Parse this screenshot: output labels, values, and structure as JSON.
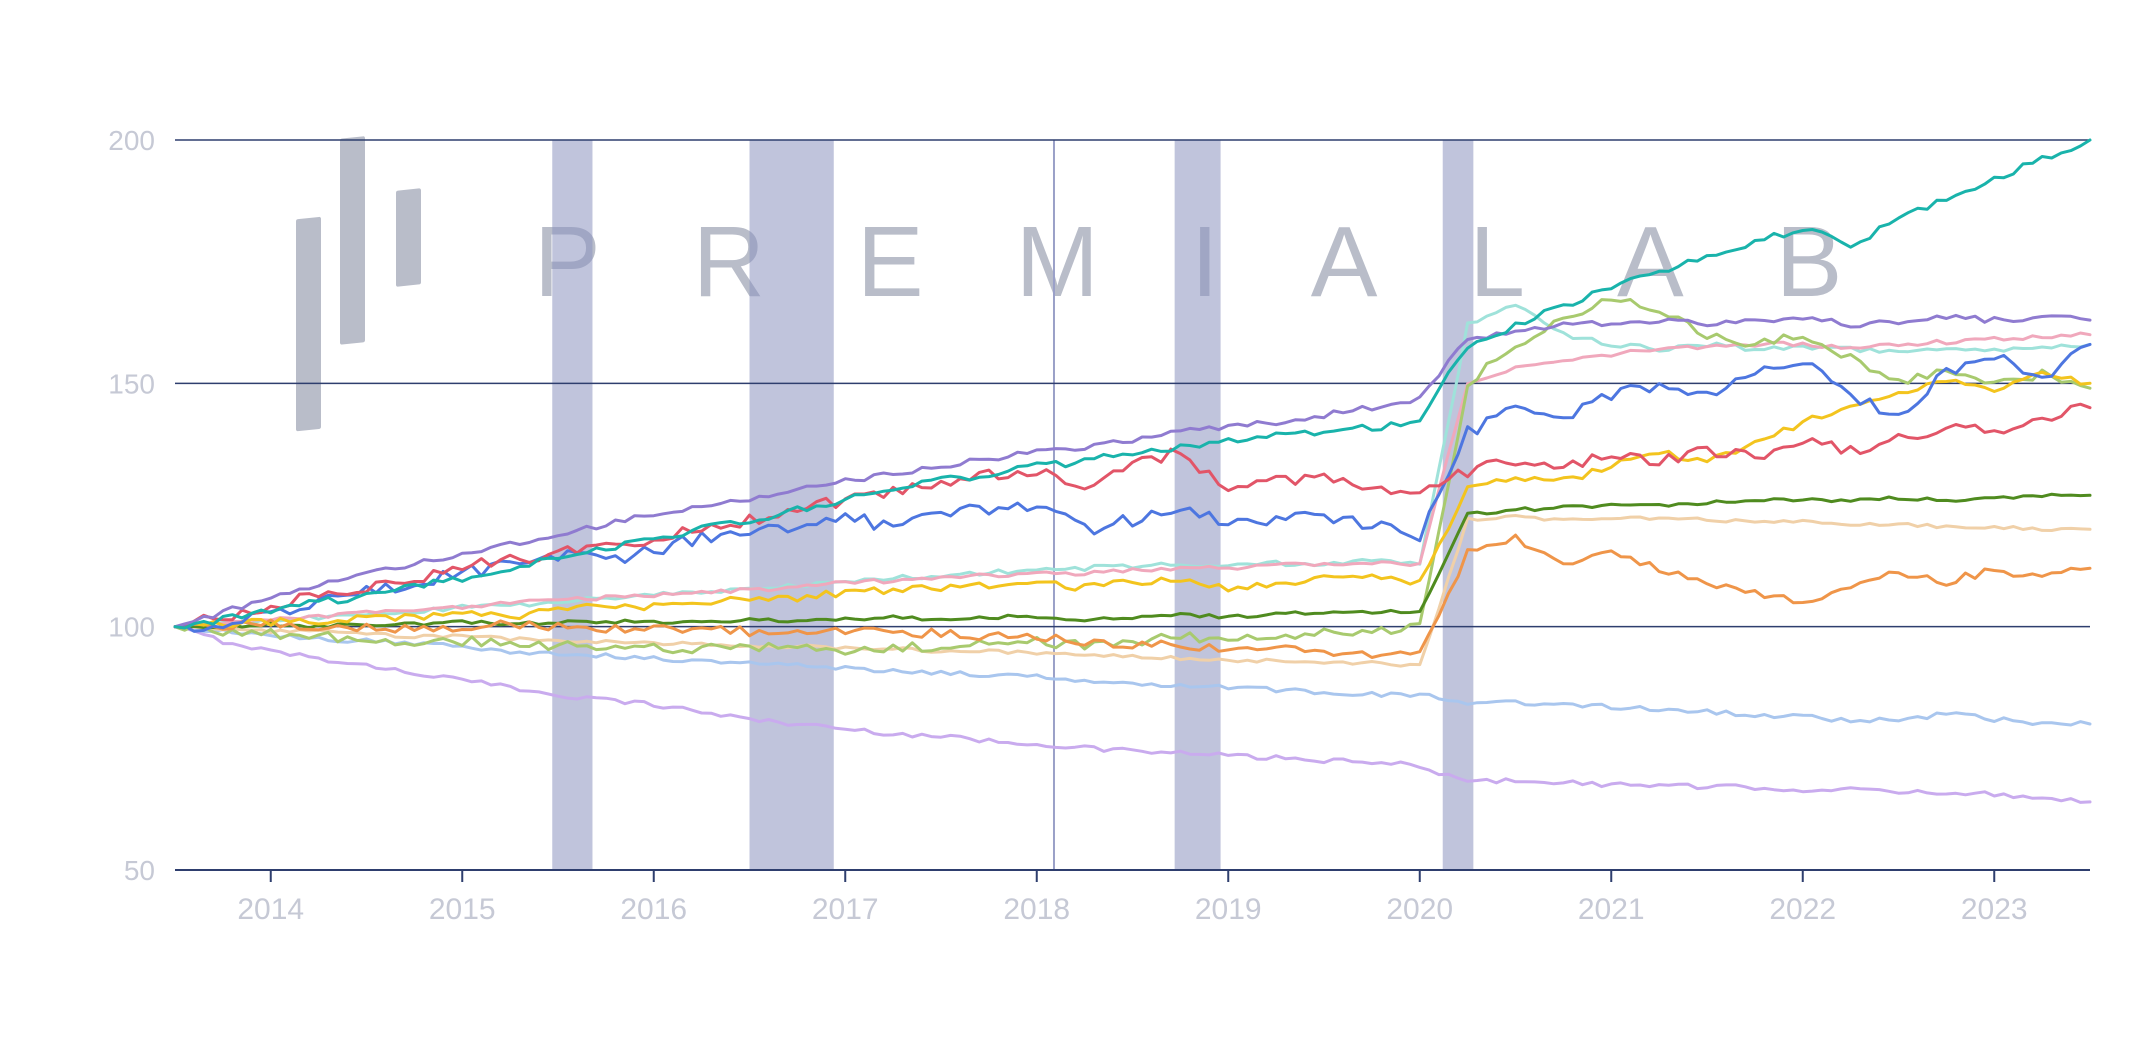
{
  "watermark": {
    "text": "PREMIALAB",
    "icon": "premialab-bars-logo"
  },
  "style": {
    "background": "#ffffff",
    "grid_color": "#2e3e6e",
    "axis_color": "#2e3e6e",
    "tick_label_color": "#c6c9d5",
    "band_color": "#8d93c0",
    "band_opacity": 0.55,
    "event_line_color": "#9aa0c8",
    "watermark_color": "#b9bdc9"
  },
  "chart_data": {
    "type": "line",
    "title": "",
    "xlabel": "",
    "ylabel": "",
    "x_unit": "year",
    "xlim": [
      2013.5,
      2023.5
    ],
    "ylim": [
      50,
      200
    ],
    "yticks": [
      50,
      100,
      150,
      200
    ],
    "xticks": [
      2014,
      2015,
      2016,
      2017,
      2018,
      2019,
      2020,
      2021,
      2022,
      2023
    ],
    "grid": "horizontal",
    "legend": "none",
    "shaded_periods": [
      [
        2015.47,
        2015.68
      ],
      [
        2016.5,
        2016.94
      ],
      [
        2018.72,
        2018.96
      ],
      [
        2020.12,
        2020.28
      ]
    ],
    "event_line_x": 2018.09,
    "x": [
      2013.5,
      2013.75,
      2014,
      2014.25,
      2014.5,
      2014.75,
      2015,
      2015.25,
      2015.5,
      2015.75,
      2016,
      2016.25,
      2016.5,
      2016.75,
      2017,
      2017.25,
      2017.5,
      2017.75,
      2018,
      2018.25,
      2018.5,
      2018.75,
      2019,
      2019.25,
      2019.5,
      2019.75,
      2020,
      2020.25,
      2020.5,
      2020.75,
      2021,
      2021.25,
      2021.5,
      2021.75,
      2022,
      2022.25,
      2022.5,
      2022.75,
      2023,
      2023.25,
      2023.5
    ],
    "series": [
      {
        "name": "lavender",
        "color": "#c9abee",
        "wiggle": 0.5,
        "values": [
          100,
          97,
          95,
          93.5,
          92,
          90.5,
          89,
          87.5,
          86,
          85,
          84,
          82.5,
          81,
          80,
          79,
          78,
          77.5,
          76.5,
          76,
          75,
          74.5,
          74,
          73.5,
          73,
          72.5,
          72,
          71.5,
          68,
          68.5,
          68,
          67.5,
          67.5,
          67,
          67,
          66.5,
          66.5,
          66,
          66,
          65.5,
          65,
          64
        ]
      },
      {
        "name": "lightblue",
        "color": "#a9c6ee",
        "wiggle": 0.5,
        "values": [
          100,
          99,
          98,
          97.5,
          97,
          96.5,
          96,
          95,
          94.5,
          94,
          93.5,
          93,
          92.5,
          92,
          91.5,
          91,
          90.5,
          90,
          90,
          89,
          88.5,
          88,
          87.5,
          87,
          86.5,
          86,
          86,
          84,
          84.5,
          84,
          83.5,
          83,
          82.5,
          82,
          81.5,
          80.5,
          81,
          82,
          81,
          80,
          80
        ]
      },
      {
        "name": "wheat",
        "color": "#f0d0a8",
        "wiggle": 0.35,
        "values": [
          100,
          99.5,
          99,
          99,
          98.5,
          98,
          98,
          97.5,
          97,
          97,
          96.5,
          96.5,
          96,
          96,
          95.5,
          95.5,
          95,
          95,
          94.5,
          94,
          94,
          93.5,
          93,
          93,
          92.5,
          92.5,
          92,
          122,
          122.5,
          122,
          122.5,
          122,
          122,
          121.5,
          121.5,
          121,
          121,
          120.5,
          120.5,
          120,
          120
        ]
      },
      {
        "name": "paleturquoise",
        "color": "#9fe2da",
        "wiggle": 0.5,
        "values": [
          100,
          100.5,
          101,
          102,
          102.5,
          103,
          104,
          104.5,
          105,
          106,
          106.5,
          107,
          108,
          108.5,
          109,
          110,
          110.5,
          111,
          112,
          112,
          112.5,
          113,
          112.5,
          113,
          113,
          113.5,
          113,
          162,
          166,
          160,
          158,
          157,
          158,
          157,
          157.5,
          157,
          156.5,
          157,
          157,
          157.5,
          158
        ]
      },
      {
        "name": "pink",
        "color": "#f0a8bc",
        "wiggle": 0.45,
        "values": [
          100,
          100.5,
          101.5,
          102,
          103,
          103.5,
          104,
          105,
          105.5,
          106,
          106.5,
          107,
          107.5,
          108,
          109,
          109.5,
          110,
          110.5,
          111,
          111,
          111.5,
          112,
          112,
          112.5,
          113,
          113,
          113,
          150,
          153,
          155,
          156,
          157,
          157.5,
          158,
          158,
          157,
          158,
          158.5,
          159,
          159.5,
          160
        ]
      },
      {
        "name": "yellowgreen",
        "color": "#a8ca6e",
        "wiggle": 1.0,
        "values": [
          100,
          99,
          98.5,
          98,
          97.5,
          97,
          97,
          96.5,
          96,
          96,
          95.5,
          95.5,
          96,
          95.5,
          95,
          95.5,
          96,
          96.5,
          97,
          96,
          97,
          98,
          97,
          98,
          99,
          99,
          100,
          150,
          158,
          163,
          168,
          165,
          160,
          158,
          160,
          155,
          150,
          153,
          150,
          152,
          149
        ]
      },
      {
        "name": "darkgreen",
        "color": "#4f8b1f",
        "wiggle": 0.35,
        "values": [
          100,
          100,
          100.5,
          100,
          100.5,
          100.5,
          101,
          100.5,
          101,
          101,
          101,
          101,
          101.5,
          101,
          101.5,
          102,
          101.5,
          102,
          102,
          101.5,
          102,
          102.5,
          102,
          102.5,
          103,
          103,
          103,
          123,
          124,
          124.5,
          125,
          125,
          125.5,
          126,
          126,
          126,
          126.5,
          126,
          126.5,
          127,
          127
        ]
      },
      {
        "name": "orange",
        "color": "#ef9549",
        "wiggle": 0.9,
        "values": [
          100,
          100,
          100.5,
          100,
          100,
          99.5,
          100,
          100.5,
          100,
          99.5,
          100,
          99.5,
          99,
          99.5,
          99,
          99,
          98.5,
          98,
          98,
          97,
          96,
          96.5,
          95,
          95.5,
          95,
          94.5,
          94,
          115,
          118,
          113,
          116,
          112,
          109,
          107,
          105,
          108,
          111,
          109,
          112,
          110,
          112
        ]
      },
      {
        "name": "gold",
        "color": "#f3c41e",
        "wiggle": 0.8,
        "values": [
          100,
          100.5,
          101,
          101,
          102,
          102,
          103,
          102,
          103.5,
          104,
          104,
          105,
          105.5,
          106,
          107,
          107.5,
          108,
          108.5,
          109,
          108,
          109,
          110,
          108,
          109,
          110,
          110,
          109,
          128,
          131,
          130,
          133,
          136,
          134,
          138,
          142,
          145,
          148,
          151,
          148,
          152,
          150
        ]
      },
      {
        "name": "blue",
        "color": "#4d76e0",
        "wiggle": 1.4,
        "values": [
          100,
          101,
          103,
          105,
          107,
          109,
          111,
          113,
          115,
          113,
          116,
          118,
          120,
          121,
          122,
          121,
          123,
          124,
          125,
          120,
          122,
          125,
          121,
          122,
          123,
          121,
          118,
          140,
          145,
          143,
          148,
          150,
          147,
          152,
          155,
          148,
          143,
          152,
          156,
          150,
          158
        ]
      },
      {
        "name": "crimson",
        "color": "#e25568",
        "wiggle": 1.2,
        "values": [
          100,
          102,
          104,
          106.5,
          108,
          110,
          112,
          114,
          115,
          117,
          118,
          120,
          122,
          124,
          126,
          128,
          130,
          131,
          132,
          129,
          133,
          136,
          128,
          130,
          131,
          129,
          127,
          132,
          134,
          133,
          135,
          134,
          136,
          135,
          138,
          136,
          139,
          141,
          140,
          143,
          145
        ]
      },
      {
        "name": "purple",
        "color": "#8f7bd0",
        "wiggle": 0.6,
        "values": [
          100,
          103,
          106,
          108.5,
          111,
          113,
          115,
          117,
          119,
          121,
          123,
          124.5,
          126,
          128,
          130,
          131.5,
          133,
          134.5,
          136,
          137,
          138.5,
          140,
          141,
          142,
          143.5,
          145,
          147,
          159,
          160.5,
          162,
          162.5,
          163,
          162,
          163,
          163.5,
          162,
          162.5,
          163.5,
          163,
          163.5,
          163
        ]
      },
      {
        "name": "teal",
        "color": "#19b3ab",
        "wiggle": 0.8,
        "values": [
          100,
          101.5,
          103,
          105,
          106.5,
          108,
          110,
          112,
          114,
          116,
          118,
          120,
          122,
          124,
          126,
          128,
          130,
          131.5,
          133,
          134,
          135.5,
          137,
          138,
          139,
          140,
          141,
          142,
          158,
          162,
          166,
          170,
          173,
          176,
          179,
          182,
          178,
          184,
          188,
          192,
          196,
          200
        ]
      }
    ]
  }
}
